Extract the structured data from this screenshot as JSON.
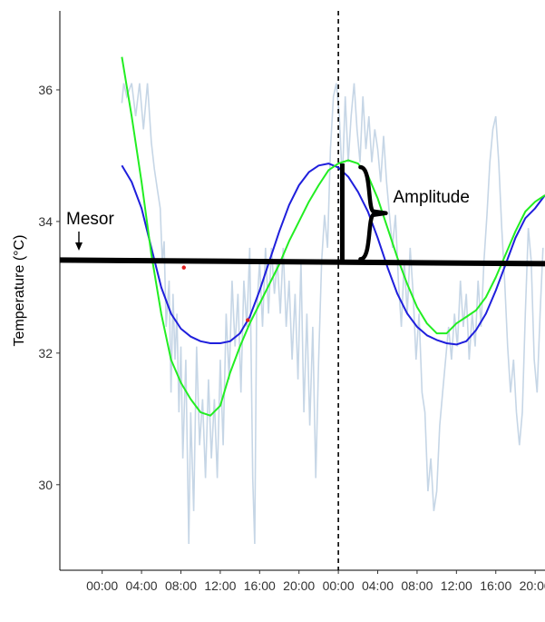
{
  "chart_data": {
    "type": "line",
    "title": "",
    "xlabel": "",
    "ylabel": "Temperature (°C)",
    "x_tick_labels": [
      "00:00",
      "04:00",
      "08:00",
      "12:00",
      "16:00",
      "20:00",
      "00:00",
      "04:00",
      "08:00",
      "12:00",
      "16:00",
      "20:00"
    ],
    "x_unit": "hours",
    "x_ticks_hours": [
      0,
      4,
      8,
      12,
      16,
      20,
      24,
      28,
      32,
      36,
      40,
      44
    ],
    "xlim": [
      -4.3,
      45
    ],
    "y_ticks": [
      30,
      32,
      34,
      36
    ],
    "ylim": [
      28.7,
      37.2
    ],
    "grid": false,
    "series": [
      {
        "role": "raw-temperature",
        "color": "#c6d6e6",
        "points": [
          [
            2,
            35.8
          ],
          [
            2.2,
            36.1
          ],
          [
            2.5,
            35.9
          ],
          [
            3,
            36.1
          ],
          [
            3.4,
            35.6
          ],
          [
            3.8,
            36.1
          ],
          [
            4.2,
            35.4
          ],
          [
            4.6,
            36.1
          ],
          [
            5,
            35.2
          ],
          [
            5.3,
            34.8
          ],
          [
            5.6,
            34.5
          ],
          [
            5.9,
            34.2
          ],
          [
            6.1,
            33.4
          ],
          [
            6.3,
            33.7
          ],
          [
            6.5,
            32.4
          ],
          [
            6.8,
            33.1
          ],
          [
            7.0,
            31.4
          ],
          [
            7.2,
            32.9
          ],
          [
            7.4,
            31.9
          ],
          [
            7.6,
            32.6
          ],
          [
            7.8,
            31.1
          ],
          [
            8.0,
            32.1
          ],
          [
            8.2,
            30.4
          ],
          [
            8.5,
            31.9
          ],
          [
            8.8,
            29.1
          ],
          [
            9.0,
            31.1
          ],
          [
            9.3,
            29.6
          ],
          [
            9.6,
            32.1
          ],
          [
            9.9,
            30.6
          ],
          [
            10.2,
            31.3
          ],
          [
            10.5,
            30.1
          ],
          [
            10.8,
            31.6
          ],
          [
            11.1,
            30.4
          ],
          [
            11.4,
            31.3
          ],
          [
            11.7,
            30.1
          ],
          [
            12.0,
            31.9
          ],
          [
            12.3,
            30.6
          ],
          [
            12.6,
            32.6
          ],
          [
            12.9,
            31.6
          ],
          [
            13.2,
            33.1
          ],
          [
            13.5,
            32.1
          ],
          [
            13.8,
            32.9
          ],
          [
            14.1,
            31.4
          ],
          [
            14.4,
            33.1
          ],
          [
            14.7,
            32.4
          ],
          [
            15.0,
            33.6
          ],
          [
            15.3,
            30.1
          ],
          [
            15.5,
            29.1
          ],
          [
            15.7,
            32.6
          ],
          [
            16.0,
            33.4
          ],
          [
            16.3,
            32.4
          ],
          [
            16.6,
            33.6
          ],
          [
            16.9,
            32.6
          ],
          [
            17.2,
            33.6
          ],
          [
            17.5,
            32.9
          ],
          [
            17.8,
            33.4
          ],
          [
            18.1,
            32.6
          ],
          [
            18.4,
            33.6
          ],
          [
            18.7,
            32.4
          ],
          [
            19.0,
            33.1
          ],
          [
            19.3,
            31.9
          ],
          [
            19.6,
            32.9
          ],
          [
            19.9,
            31.6
          ],
          [
            20.2,
            33.4
          ],
          [
            20.5,
            31.1
          ],
          [
            20.8,
            32.6
          ],
          [
            21.1,
            30.9
          ],
          [
            21.4,
            32.4
          ],
          [
            21.7,
            30.1
          ],
          [
            22.0,
            31.9
          ],
          [
            22.3,
            33.4
          ],
          [
            22.6,
            34.1
          ],
          [
            22.9,
            33.6
          ],
          [
            23.2,
            35.1
          ],
          [
            23.5,
            35.9
          ],
          [
            23.8,
            36.1
          ],
          [
            24.1,
            35.6
          ],
          [
            24.4,
            34.6
          ],
          [
            24.7,
            35.9
          ],
          [
            25.0,
            34.9
          ],
          [
            25.3,
            35.6
          ],
          [
            25.6,
            36.1
          ],
          [
            25.9,
            35.4
          ],
          [
            26.2,
            34.9
          ],
          [
            26.5,
            35.9
          ],
          [
            26.8,
            35.1
          ],
          [
            27.1,
            35.6
          ],
          [
            27.4,
            34.9
          ],
          [
            27.7,
            35.4
          ],
          [
            28.0,
            35.1
          ],
          [
            28.3,
            34.6
          ],
          [
            28.6,
            35.3
          ],
          [
            28.9,
            34.6
          ],
          [
            29.2,
            34.1
          ],
          [
            29.5,
            33.6
          ],
          [
            29.8,
            34.1
          ],
          [
            30.1,
            33.1
          ],
          [
            30.4,
            32.4
          ],
          [
            30.7,
            33.4
          ],
          [
            31.0,
            32.6
          ],
          [
            31.3,
            33.6
          ],
          [
            31.6,
            32.9
          ],
          [
            31.9,
            31.9
          ],
          [
            32.2,
            32.6
          ],
          [
            32.5,
            31.4
          ],
          [
            32.8,
            31.1
          ],
          [
            33.1,
            29.9
          ],
          [
            33.4,
            30.4
          ],
          [
            33.7,
            29.6
          ],
          [
            34.0,
            29.9
          ],
          [
            34.3,
            30.9
          ],
          [
            34.6,
            31.4
          ],
          [
            34.9,
            31.9
          ],
          [
            35.2,
            32.4
          ],
          [
            35.5,
            31.9
          ],
          [
            35.8,
            32.6
          ],
          [
            36.1,
            32.1
          ],
          [
            36.4,
            33.1
          ],
          [
            36.7,
            32.4
          ],
          [
            37.0,
            32.9
          ],
          [
            37.3,
            31.9
          ],
          [
            37.6,
            32.6
          ],
          [
            37.9,
            32.1
          ],
          [
            38.2,
            33.1
          ],
          [
            38.5,
            32.4
          ],
          [
            38.8,
            33.4
          ],
          [
            39.1,
            34.1
          ],
          [
            39.4,
            34.9
          ],
          [
            39.7,
            35.4
          ],
          [
            40.0,
            35.6
          ],
          [
            40.3,
            34.9
          ],
          [
            40.6,
            33.9
          ],
          [
            40.9,
            33.1
          ],
          [
            41.2,
            32.1
          ],
          [
            41.5,
            31.4
          ],
          [
            41.8,
            31.9
          ],
          [
            42.1,
            31.1
          ],
          [
            42.4,
            30.6
          ],
          [
            42.7,
            31.1
          ],
          [
            43.0,
            32.6
          ],
          [
            43.3,
            33.9
          ],
          [
            43.6,
            33.4
          ],
          [
            43.9,
            31.9
          ],
          [
            44.2,
            31.4
          ],
          [
            44.5,
            32.6
          ],
          [
            44.8,
            33.6
          ]
        ]
      },
      {
        "role": "cosinor-fit",
        "color": "#1f1fdc",
        "points": [
          [
            2,
            34.85
          ],
          [
            3,
            34.6
          ],
          [
            4,
            34.2
          ],
          [
            5,
            33.6
          ],
          [
            6,
            33.0
          ],
          [
            7,
            32.6
          ],
          [
            8,
            32.37
          ],
          [
            9,
            32.25
          ],
          [
            10,
            32.18
          ],
          [
            11,
            32.15
          ],
          [
            12,
            32.15
          ],
          [
            13,
            32.18
          ],
          [
            14,
            32.3
          ],
          [
            15,
            32.55
          ],
          [
            16,
            32.95
          ],
          [
            17,
            33.4
          ],
          [
            18,
            33.85
          ],
          [
            19,
            34.25
          ],
          [
            20,
            34.55
          ],
          [
            21,
            34.75
          ],
          [
            22,
            34.85
          ],
          [
            23,
            34.88
          ],
          [
            24,
            34.82
          ],
          [
            25,
            34.68
          ],
          [
            26,
            34.45
          ],
          [
            27,
            34.15
          ],
          [
            28,
            33.75
          ],
          [
            29,
            33.3
          ],
          [
            30,
            32.9
          ],
          [
            31,
            32.6
          ],
          [
            32,
            32.4
          ],
          [
            33,
            32.27
          ],
          [
            34,
            32.2
          ],
          [
            35,
            32.15
          ],
          [
            36,
            32.13
          ],
          [
            37,
            32.18
          ],
          [
            38,
            32.35
          ],
          [
            39,
            32.6
          ],
          [
            40,
            32.95
          ],
          [
            41,
            33.35
          ],
          [
            42,
            33.75
          ],
          [
            43,
            34.05
          ],
          [
            44,
            34.2
          ],
          [
            45,
            34.4
          ]
        ]
      },
      {
        "role": "smoothed-curve",
        "color": "#22ee22",
        "points": [
          [
            2,
            36.5
          ],
          [
            3,
            35.6
          ],
          [
            4,
            34.6
          ],
          [
            5,
            33.5
          ],
          [
            6,
            32.6
          ],
          [
            7,
            31.9
          ],
          [
            8,
            31.55
          ],
          [
            9,
            31.3
          ],
          [
            10,
            31.1
          ],
          [
            11,
            31.05
          ],
          [
            12,
            31.2
          ],
          [
            13,
            31.7
          ],
          [
            14,
            32.1
          ],
          [
            15,
            32.45
          ],
          [
            16,
            32.75
          ],
          [
            17,
            33.05
          ],
          [
            18,
            33.35
          ],
          [
            19,
            33.7
          ],
          [
            20,
            34.0
          ],
          [
            21,
            34.3
          ],
          [
            22,
            34.55
          ],
          [
            23,
            34.78
          ],
          [
            24,
            34.88
          ],
          [
            25,
            34.93
          ],
          [
            26,
            34.88
          ],
          [
            27,
            34.7
          ],
          [
            28,
            34.35
          ],
          [
            29,
            33.9
          ],
          [
            30,
            33.45
          ],
          [
            31,
            33.05
          ],
          [
            32,
            32.7
          ],
          [
            33,
            32.45
          ],
          [
            34,
            32.3
          ],
          [
            35,
            32.3
          ],
          [
            36,
            32.45
          ],
          [
            37,
            32.55
          ],
          [
            38,
            32.65
          ],
          [
            39,
            32.85
          ],
          [
            40,
            33.15
          ],
          [
            41,
            33.5
          ],
          [
            42,
            33.85
          ],
          [
            43,
            34.15
          ],
          [
            44,
            34.3
          ],
          [
            45,
            34.4
          ]
        ]
      }
    ],
    "reference_lines": {
      "mesor": {
        "y": 33.4,
        "color": "#000000"
      },
      "dashed_vertical": {
        "x": 24,
        "color": "#000000"
      }
    },
    "annotations": [
      {
        "name": "mesor-label",
        "text": "Mesor"
      },
      {
        "name": "amplitude-label",
        "text": "Amplitude",
        "from": 33.4,
        "to": 34.88
      }
    ],
    "red_marks": [
      [
        8.3,
        33.3
      ],
      [
        14.8,
        32.5
      ]
    ]
  }
}
